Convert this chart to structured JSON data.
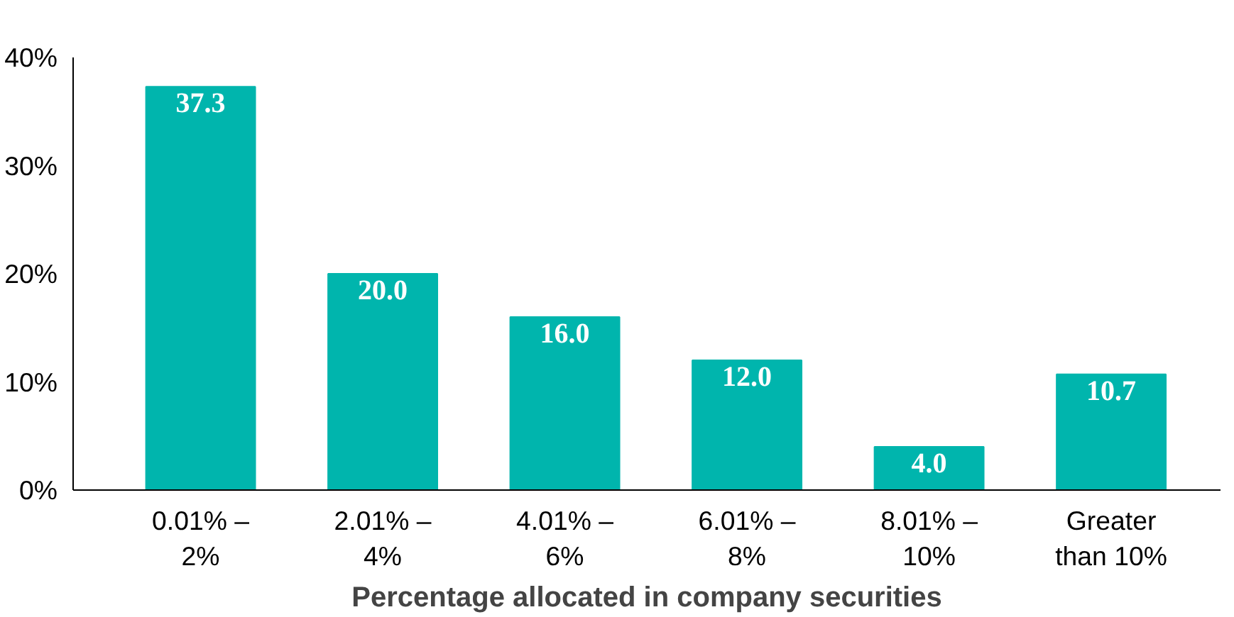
{
  "chart_data": {
    "type": "bar",
    "xlabel": "Percentage allocated in company securities",
    "categories": [
      "0.01% –\n2%",
      "2.01% –\n4%",
      "4.01% –\n6%",
      "6.01% –\n8%",
      "8.01% –\n10%",
      "Greater\nthan 10%"
    ],
    "values": [
      37.3,
      20.0,
      16.0,
      12.0,
      4.0,
      10.7
    ],
    "value_labels": [
      "37.3",
      "20.0",
      "16.0",
      "12.0",
      "4.0",
      "10.7"
    ],
    "color": "#00b5ad",
    "ylim": [
      0,
      40
    ],
    "yticks": [
      {
        "value": 0,
        "label": "0%"
      },
      {
        "value": 10,
        "label": "10%"
      },
      {
        "value": 20,
        "label": "20%"
      },
      {
        "value": 30,
        "label": "30%"
      },
      {
        "value": 40,
        "label": "40%"
      }
    ],
    "grid": false
  }
}
